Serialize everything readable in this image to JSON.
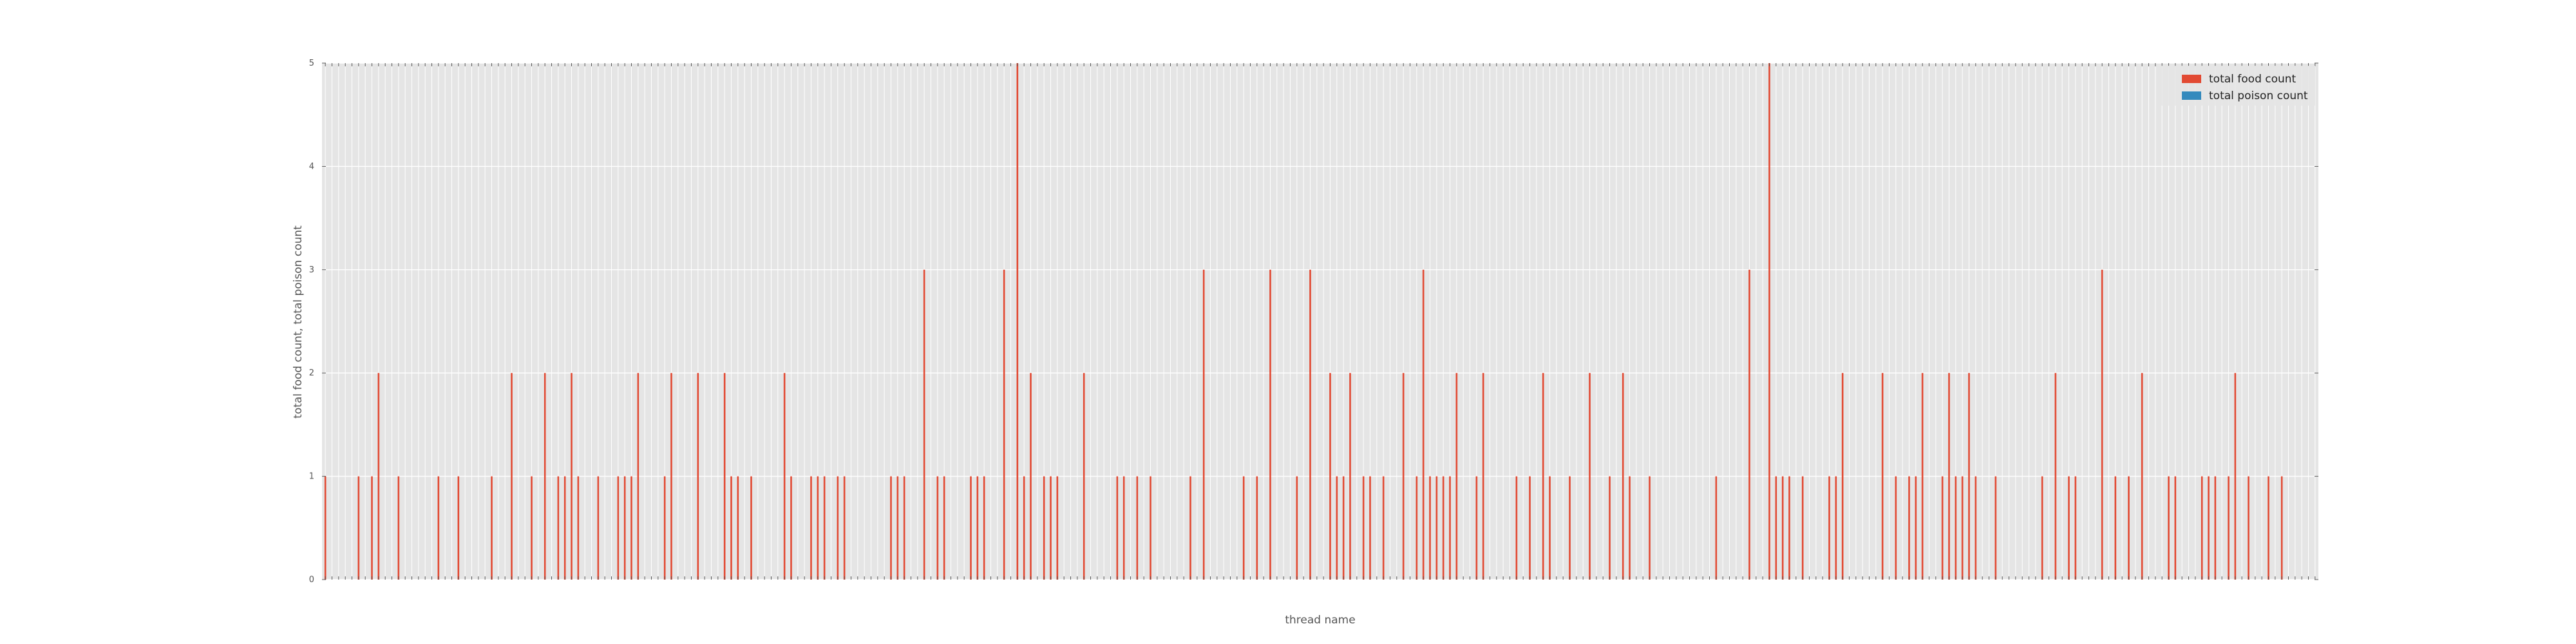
{
  "chart_data": {
    "type": "bar",
    "xlabel": "thread name",
    "ylabel": "total food count, total poison count",
    "ylim": [
      0,
      5
    ],
    "yticks": [
      "0",
      "1",
      "2",
      "3",
      "4",
      "5"
    ],
    "grid": true,
    "legend_position": "top-right",
    "series": [
      {
        "name": "total food count",
        "color": "#E24A33"
      },
      {
        "name": "total poison count",
        "color": "#348ABD"
      }
    ],
    "category_count": 300,
    "nonzero_bars": [
      [
        0,
        1
      ],
      [
        5,
        1
      ],
      [
        7,
        1
      ],
      [
        8,
        2
      ],
      [
        11,
        1
      ],
      [
        17,
        1
      ],
      [
        20,
        1
      ],
      [
        25,
        1
      ],
      [
        28,
        2
      ],
      [
        31,
        1
      ],
      [
        33,
        2
      ],
      [
        35,
        1
      ],
      [
        36,
        1
      ],
      [
        37,
        2
      ],
      [
        38,
        1
      ],
      [
        41,
        1
      ],
      [
        44,
        1
      ],
      [
        45,
        1
      ],
      [
        46,
        1
      ],
      [
        47,
        2
      ],
      [
        51,
        1
      ],
      [
        52,
        2
      ],
      [
        56,
        2
      ],
      [
        60,
        2
      ],
      [
        61,
        1
      ],
      [
        62,
        1
      ],
      [
        64,
        1
      ],
      [
        69,
        2
      ],
      [
        70,
        1
      ],
      [
        73,
        1
      ],
      [
        74,
        1
      ],
      [
        75,
        1
      ],
      [
        77,
        1
      ],
      [
        78,
        1
      ],
      [
        85,
        1
      ],
      [
        86,
        1
      ],
      [
        87,
        1
      ],
      [
        90,
        3
      ],
      [
        92,
        1
      ],
      [
        93,
        1
      ],
      [
        97,
        1
      ],
      [
        98,
        1
      ],
      [
        99,
        1
      ],
      [
        102,
        3
      ],
      [
        104,
        5
      ],
      [
        105,
        1
      ],
      [
        106,
        2
      ],
      [
        108,
        1
      ],
      [
        109,
        1
      ],
      [
        110,
        1
      ],
      [
        114,
        2
      ],
      [
        119,
        1
      ],
      [
        120,
        1
      ],
      [
        122,
        1
      ],
      [
        124,
        1
      ],
      [
        130,
        1
      ],
      [
        132,
        3
      ],
      [
        138,
        1
      ],
      [
        140,
        1
      ],
      [
        142,
        3
      ],
      [
        146,
        1
      ],
      [
        148,
        3
      ],
      [
        151,
        2
      ],
      [
        152,
        1
      ],
      [
        153,
        1
      ],
      [
        154,
        2
      ],
      [
        156,
        1
      ],
      [
        157,
        1
      ],
      [
        159,
        1
      ],
      [
        162,
        2
      ],
      [
        164,
        1
      ],
      [
        165,
        3
      ],
      [
        166,
        1
      ],
      [
        167,
        1
      ],
      [
        168,
        1
      ],
      [
        169,
        1
      ],
      [
        170,
        2
      ],
      [
        173,
        1
      ],
      [
        174,
        2
      ],
      [
        179,
        1
      ],
      [
        181,
        1
      ],
      [
        183,
        2
      ],
      [
        184,
        1
      ],
      [
        187,
        1
      ],
      [
        190,
        2
      ],
      [
        193,
        1
      ],
      [
        195,
        2
      ],
      [
        196,
        1
      ],
      [
        199,
        1
      ],
      [
        209,
        1
      ],
      [
        214,
        3
      ],
      [
        217,
        5
      ],
      [
        218,
        1
      ],
      [
        219,
        1
      ],
      [
        220,
        1
      ],
      [
        222,
        1
      ],
      [
        226,
        1
      ],
      [
        227,
        1
      ],
      [
        228,
        2
      ],
      [
        234,
        2
      ],
      [
        236,
        1
      ],
      [
        238,
        1
      ],
      [
        239,
        1
      ],
      [
        240,
        2
      ],
      [
        243,
        1
      ],
      [
        244,
        2
      ],
      [
        245,
        1
      ],
      [
        246,
        1
      ],
      [
        247,
        2
      ],
      [
        248,
        1
      ],
      [
        251,
        1
      ],
      [
        258,
        1
      ],
      [
        260,
        2
      ],
      [
        262,
        1
      ],
      [
        263,
        1
      ],
      [
        267,
        3
      ],
      [
        269,
        1
      ],
      [
        271,
        1
      ],
      [
        273,
        2
      ],
      [
        277,
        1
      ],
      [
        278,
        1
      ],
      [
        282,
        1
      ],
      [
        283,
        1
      ],
      [
        284,
        1
      ],
      [
        286,
        1
      ],
      [
        287,
        2
      ],
      [
        289,
        1
      ],
      [
        292,
        1
      ],
      [
        294,
        1
      ]
    ]
  }
}
